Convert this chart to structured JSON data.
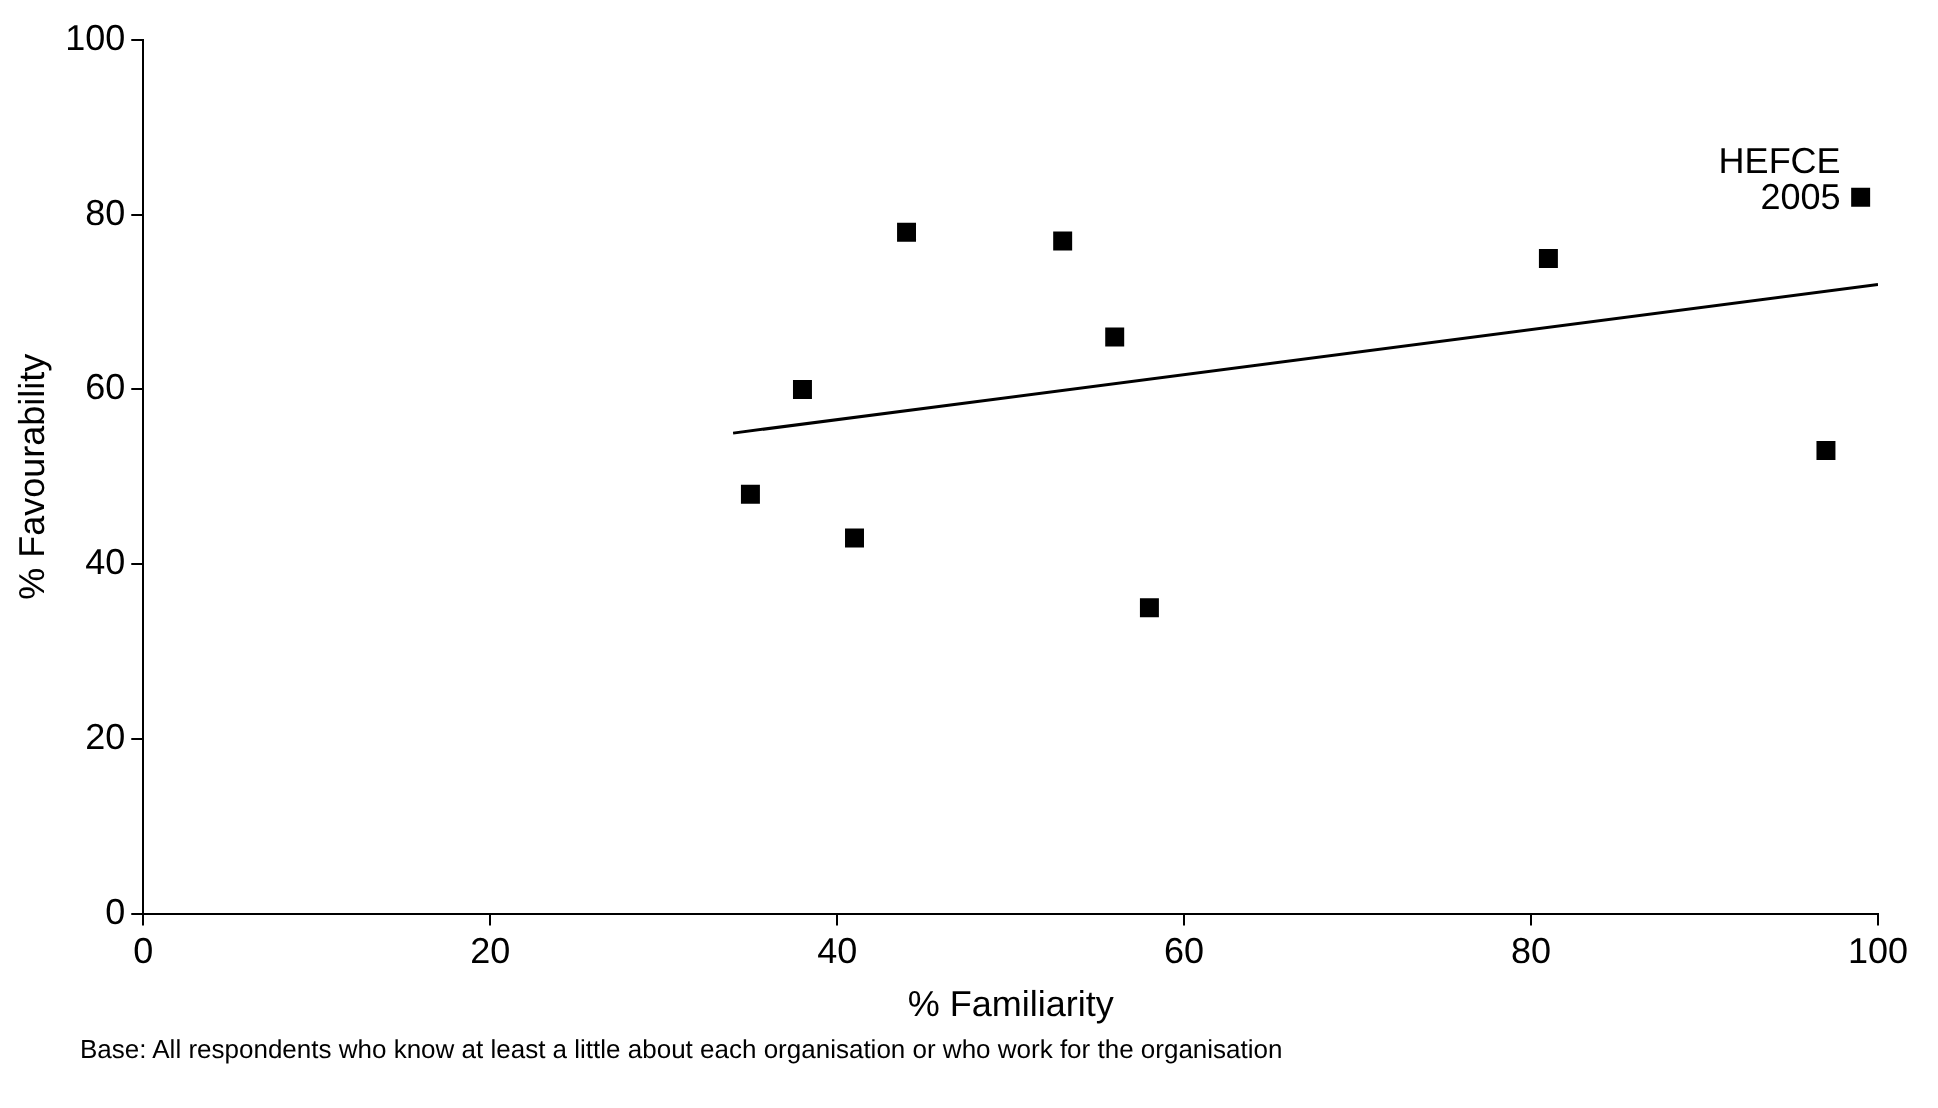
{
  "chart_data": {
    "type": "scatter",
    "xlabel": "% Familiarity",
    "ylabel": "% Favourability",
    "xlim": [
      0,
      100
    ],
    "xticks": [
      0,
      20,
      40,
      60,
      80,
      100
    ],
    "ylim": [
      0,
      100
    ],
    "yticks": [
      0,
      20,
      40,
      60,
      80,
      100
    ],
    "grid": false,
    "legend": false,
    "marker": "square",
    "series": [
      {
        "type": "scatter",
        "color": "#000000",
        "x": [
          35,
          38,
          41,
          44,
          53,
          56,
          58,
          81,
          97,
          99
        ],
        "values": [
          48,
          60,
          43,
          78,
          77,
          66,
          35,
          75,
          53,
          82
        ]
      },
      {
        "type": "line",
        "color": "#000000",
        "marker": "none",
        "x": [
          34,
          100
        ],
        "values": [
          55,
          72
        ]
      }
    ],
    "annotations": [
      {
        "text": "HEFCE\n2005",
        "x": 99,
        "y": 82
      },
      "Base:  All respondents who know at least a little about each organisation or who work for the organisation"
    ]
  }
}
